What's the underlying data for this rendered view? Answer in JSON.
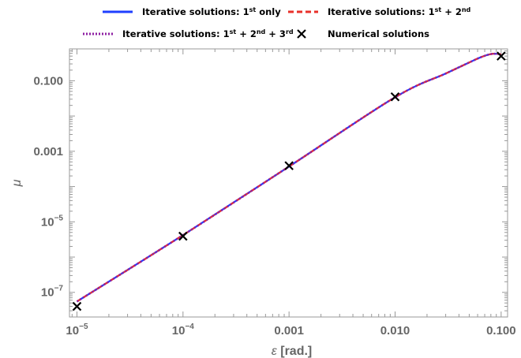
{
  "chart_data": {
    "type": "line",
    "x_scale": "log",
    "y_scale": "log",
    "xlim": [
      8.5e-06,
      0.115
    ],
    "ylim": [
      2e-08,
      0.8
    ],
    "xlabel": {
      "symbol": "ε",
      "unit": "[rad.]"
    },
    "ylabel": "μ",
    "x_ticks": [
      {
        "value": 1e-05,
        "mantissa": "10",
        "exp": "−5"
      },
      {
        "value": 0.0001,
        "mantissa": "10",
        "exp": "−4"
      },
      {
        "value": 0.001,
        "text": "0.001"
      },
      {
        "value": 0.01,
        "text": "0.010"
      },
      {
        "value": 0.1,
        "text": "0.100"
      }
    ],
    "y_ticks": [
      {
        "value": 1e-07,
        "mantissa": "10",
        "exp": "−7"
      },
      {
        "value": 1e-05,
        "mantissa": "10",
        "exp": "−5"
      },
      {
        "value": 0.001,
        "text": "0.001"
      },
      {
        "value": 0.1,
        "text": "0.100"
      }
    ],
    "series": [
      {
        "name": "Iterative solutions: 1st only",
        "style": "solid",
        "color": "#1f3fff",
        "x": [
          1e-05,
          0.0001,
          0.001,
          0.01,
          0.03,
          0.05,
          0.065,
          0.08,
          0.09,
          0.1
        ],
        "y": [
          5.5e-08,
          4.2e-06,
          0.00037,
          0.034,
          0.16,
          0.33,
          0.47,
          0.57,
          0.58,
          0.56
        ]
      },
      {
        "name": "Iterative solutions: 1st + 2nd",
        "style": "dashed",
        "color": "#e8302a",
        "x": [
          1e-05,
          0.0001,
          0.001,
          0.01,
          0.03,
          0.05,
          0.065,
          0.08,
          0.09,
          0.1
        ],
        "y": [
          5.5e-08,
          4.2e-06,
          0.00037,
          0.034,
          0.16,
          0.33,
          0.47,
          0.57,
          0.58,
          0.56
        ]
      },
      {
        "name": "Iterative solutions: 1st + 2nd + 3rd",
        "style": "dotted",
        "color": "#8e1fa3",
        "x": [
          1e-05,
          0.0001,
          0.001,
          0.01,
          0.03,
          0.05,
          0.065,
          0.08,
          0.09,
          0.1
        ],
        "y": [
          5.5e-08,
          4.2e-06,
          0.00037,
          0.034,
          0.16,
          0.33,
          0.47,
          0.57,
          0.58,
          0.56
        ]
      },
      {
        "name": "Numerical solutions",
        "style": "marker-x",
        "color": "#000000",
        "x": [
          1e-05,
          0.0001,
          0.001,
          0.01,
          0.1
        ],
        "y": [
          4e-08,
          3.9e-06,
          0.00039,
          0.035,
          0.5
        ]
      }
    ],
    "legend": {
      "position": "top",
      "entries": [
        {
          "prefix": "Iterative solutions: 1",
          "parts": [
            [
              "st",
              true
            ],
            [
              " only",
              false
            ]
          ]
        },
        {
          "prefix": "Iterative solutions: 1",
          "parts": [
            [
              "st",
              true
            ],
            [
              " + 2",
              false
            ],
            [
              "nd",
              true
            ]
          ]
        },
        {
          "prefix": "Iterative solutions: 1",
          "parts": [
            [
              "st",
              true
            ],
            [
              " + 2",
              false
            ],
            [
              "nd",
              true
            ],
            [
              " + 3",
              false
            ],
            [
              "rd",
              true
            ]
          ]
        },
        {
          "prefix": "Numerical solutions",
          "parts": []
        }
      ]
    },
    "grid": false
  }
}
